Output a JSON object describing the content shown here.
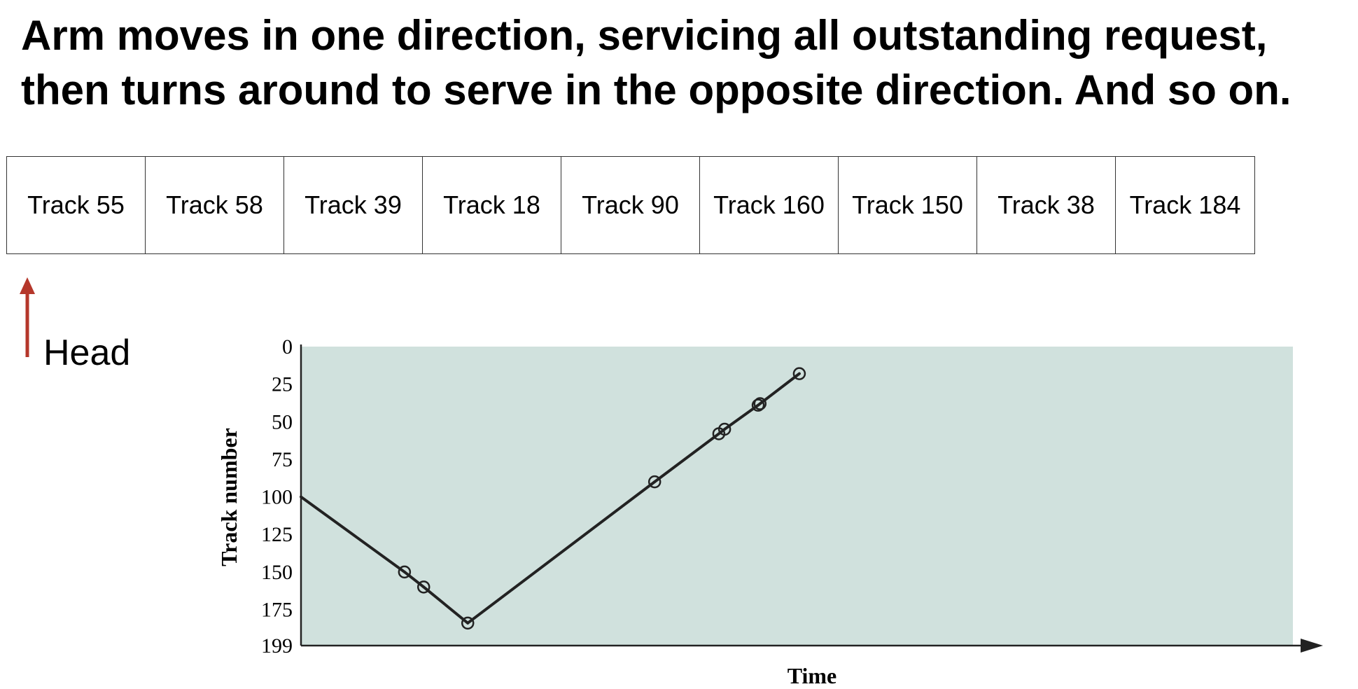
{
  "title": {
    "line1": "Arm moves in one direction, servicing all outstanding request,",
    "line2": "then turns around to serve in the opposite direction. And so on."
  },
  "queue": [
    "Track 55",
    "Track 58",
    "Track 39",
    "Track 18",
    "Track 90",
    "Track 160",
    "Track 150",
    "Track 38",
    "Track 184"
  ],
  "head": {
    "label": "Head",
    "arrow_color": "#b5372b"
  },
  "chart_data": {
    "type": "line",
    "xlabel": "Time",
    "ylabel": "Track number",
    "y_ticks": [
      "0",
      "25",
      "50",
      "75",
      "100",
      "125",
      "150",
      "175",
      "199"
    ],
    "ylim": [
      0,
      199
    ],
    "y_inverted": true,
    "plot_background": "#d0e1dd",
    "series": [
      {
        "points": [
          {
            "x": 0,
            "y": 100
          },
          {
            "x": 2.16,
            "y": 150
          },
          {
            "x": 2.56,
            "y": 160
          },
          {
            "x": 3.48,
            "y": 184
          },
          {
            "x": 7.38,
            "y": 90
          },
          {
            "x": 8.72,
            "y": 58
          },
          {
            "x": 8.84,
            "y": 55
          },
          {
            "x": 9.54,
            "y": 39
          },
          {
            "x": 9.58,
            "y": 38
          },
          {
            "x": 10.4,
            "y": 18
          }
        ],
        "markers": [
          1,
          2,
          3,
          4,
          5,
          6,
          7,
          8,
          9
        ]
      }
    ],
    "xlim": [
      0,
      20.7
    ]
  }
}
